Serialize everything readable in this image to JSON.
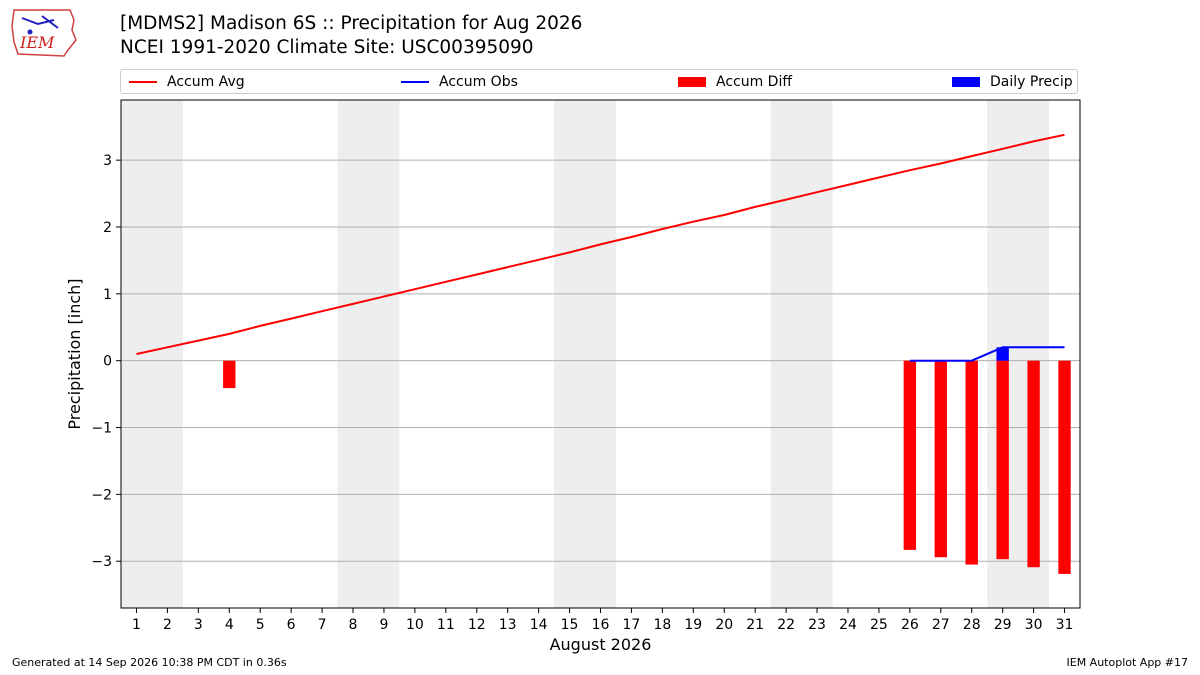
{
  "header": {
    "logo_text": "IEM",
    "title_line1": "[MDMS2] Madison 6S :: Precipitation for Aug 2026",
    "title_line2": "NCEI 1991-2020 Climate Site: USC00395090"
  },
  "footer": {
    "generated": "Generated at 14 Sep 2026 10:38 PM CDT in 0.36s",
    "app": "IEM Autoplot App #17"
  },
  "colors": {
    "accum_avg": "#ff0000",
    "accum_obs": "#0000ff",
    "accum_diff": "#ff0000",
    "daily_precip": "#0000ff",
    "weekend_shade": "#eeeeee",
    "grid": "#b0b0b0"
  },
  "chart_data": {
    "type": "bar",
    "xlabel": "August 2026",
    "ylabel": "Precipitation [inch]",
    "x": [
      1,
      2,
      3,
      4,
      5,
      6,
      7,
      8,
      9,
      10,
      11,
      12,
      13,
      14,
      15,
      16,
      17,
      18,
      19,
      20,
      21,
      22,
      23,
      24,
      25,
      26,
      27,
      28,
      29,
      30,
      31
    ],
    "xlim": [
      0.5,
      31.5
    ],
    "ylim": [
      -3.7,
      3.9
    ],
    "yticks": [
      -3,
      -2,
      -1,
      0,
      1,
      2,
      3
    ],
    "ytick_labels": [
      "−3",
      "−2",
      "−1",
      "0",
      "1",
      "2",
      "3"
    ],
    "grid": "horizontal",
    "legend_position": "top",
    "shaded_ranges": [
      [
        1,
        2
      ],
      [
        8,
        9
      ],
      [
        15,
        16
      ],
      [
        22,
        23
      ],
      [
        29,
        30
      ]
    ],
    "series": [
      {
        "name": "Accum Avg",
        "kind": "line",
        "x": [
          1,
          2,
          3,
          4,
          5,
          6,
          7,
          8,
          9,
          10,
          11,
          12,
          13,
          14,
          15,
          16,
          17,
          18,
          19,
          20,
          21,
          22,
          23,
          24,
          25,
          26,
          27,
          28,
          29,
          30,
          31
        ],
        "values": [
          0.1,
          0.2,
          0.3,
          0.4,
          0.52,
          0.63,
          0.74,
          0.85,
          0.96,
          1.07,
          1.18,
          1.29,
          1.4,
          1.51,
          1.62,
          1.74,
          1.85,
          1.97,
          2.08,
          2.18,
          2.3,
          2.41,
          2.52,
          2.63,
          2.74,
          2.85,
          2.95,
          3.06,
          3.17,
          3.28,
          3.38
        ]
      },
      {
        "name": "Accum Obs",
        "kind": "line",
        "x": [
          26,
          27,
          28,
          29,
          30,
          31
        ],
        "values": [
          0.0,
          0.0,
          0.0,
          0.2,
          0.2,
          0.2
        ]
      },
      {
        "name": "Accum Diff",
        "kind": "bar",
        "x": [
          4,
          26,
          27,
          28,
          29,
          30,
          31
        ],
        "values": [
          -0.41,
          -2.83,
          -2.94,
          -3.05,
          -2.97,
          -3.09,
          -3.19
        ]
      },
      {
        "name": "Daily Precip",
        "kind": "bar",
        "x": [
          29
        ],
        "values": [
          0.2
        ]
      }
    ]
  }
}
